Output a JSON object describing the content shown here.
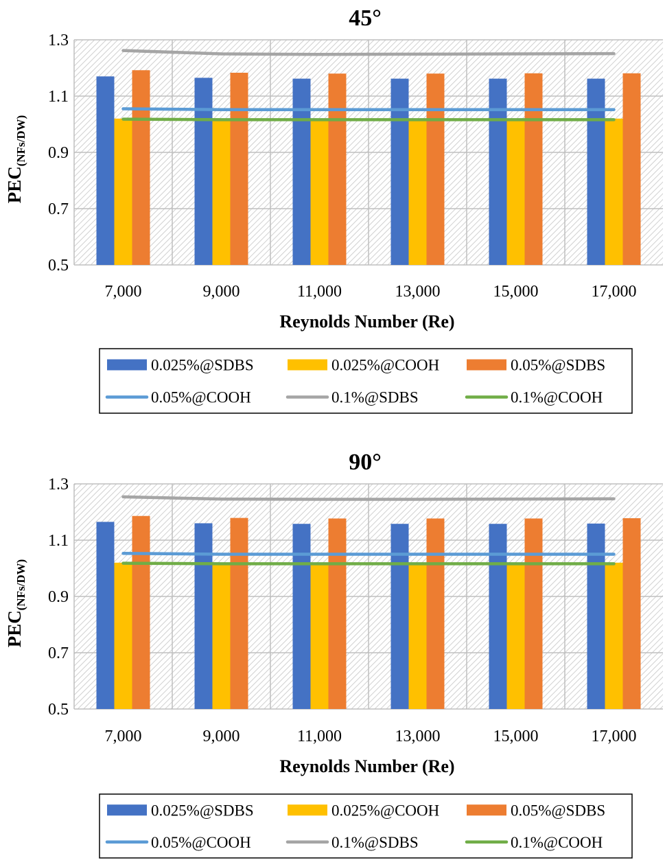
{
  "chart_data": [
    {
      "type": "bar",
      "title": "45°",
      "xlabel": "Reynolds Number (Re)",
      "ylabel_main": "PEC",
      "ylabel_sub": "(NFs/DW)",
      "categories": [
        "7,000",
        "9,000",
        "11,000",
        "13,000",
        "15,000",
        "17,000"
      ],
      "ylim": [
        0.5,
        1.3
      ],
      "yticks": [
        0.5,
        0.7,
        0.9,
        1.1,
        1.3
      ],
      "ytick_labels": [
        "0.5",
        "0.7",
        "0.9",
        "1.1",
        "1.3"
      ],
      "bar_series": [
        {
          "name": "0.025%@SDBS",
          "color": "#4472C4",
          "values": [
            1.17,
            1.165,
            1.162,
            1.162,
            1.162,
            1.162
          ]
        },
        {
          "name": "0.025%@COOH",
          "color": "#FFC000",
          "values": [
            1.02,
            1.02,
            1.02,
            1.02,
            1.02,
            1.02
          ]
        },
        {
          "name": "0.05%@SDBS",
          "color": "#ED7D31",
          "values": [
            1.192,
            1.183,
            1.18,
            1.18,
            1.181,
            1.181
          ]
        }
      ],
      "line_series": [
        {
          "name": "0.05%@COOH",
          "color": "#5B9BD5",
          "values": [
            1.055,
            1.052,
            1.052,
            1.052,
            1.052,
            1.052
          ]
        },
        {
          "name": "0.1%@SDBS",
          "color": "#A5A5A5",
          "values": [
            1.262,
            1.25,
            1.248,
            1.249,
            1.25,
            1.251
          ]
        },
        {
          "name": "0.1%@COOH",
          "color": "#70AD47",
          "values": [
            1.018,
            1.016,
            1.016,
            1.016,
            1.016,
            1.016
          ]
        }
      ],
      "legend": [
        "0.025%@SDBS",
        "0.025%@COOH",
        "0.05%@SDBS",
        "0.05%@COOH",
        "0.1%@SDBS",
        "0.1%@COOH"
      ],
      "legend_position": "bottom"
    },
    {
      "type": "bar",
      "title": "90°",
      "xlabel": "Reynolds Number (Re)",
      "ylabel_main": "PEC",
      "ylabel_sub": "(NFs/DW)",
      "categories": [
        "7,000",
        "9,000",
        "11,000",
        "13,000",
        "15,000",
        "17,000"
      ],
      "ylim": [
        0.5,
        1.3
      ],
      "yticks": [
        0.5,
        0.7,
        0.9,
        1.1,
        1.3
      ],
      "ytick_labels": [
        "0.5",
        "0.7",
        "0.9",
        "1.1",
        "1.3"
      ],
      "bar_series": [
        {
          "name": "0.025%@SDBS",
          "color": "#4472C4",
          "values": [
            1.165,
            1.16,
            1.158,
            1.158,
            1.158,
            1.159
          ]
        },
        {
          "name": "0.025%@COOH",
          "color": "#FFC000",
          "values": [
            1.02,
            1.02,
            1.02,
            1.02,
            1.02,
            1.02
          ]
        },
        {
          "name": "0.05%@SDBS",
          "color": "#ED7D31",
          "values": [
            1.186,
            1.179,
            1.177,
            1.177,
            1.177,
            1.178
          ]
        }
      ],
      "line_series": [
        {
          "name": "0.05%@COOH",
          "color": "#5B9BD5",
          "values": [
            1.053,
            1.05,
            1.05,
            1.05,
            1.05,
            1.05
          ]
        },
        {
          "name": "0.1%@SDBS",
          "color": "#A5A5A5",
          "values": [
            1.254,
            1.246,
            1.245,
            1.245,
            1.246,
            1.247
          ]
        },
        {
          "name": "0.1%@COOH",
          "color": "#70AD47",
          "values": [
            1.018,
            1.016,
            1.016,
            1.016,
            1.016,
            1.016
          ]
        }
      ],
      "legend": [
        "0.025%@SDBS",
        "0.025%@COOH",
        "0.05%@SDBS",
        "0.05%@COOH",
        "0.1%@SDBS",
        "0.1%@COOH"
      ],
      "legend_position": "bottom"
    }
  ]
}
